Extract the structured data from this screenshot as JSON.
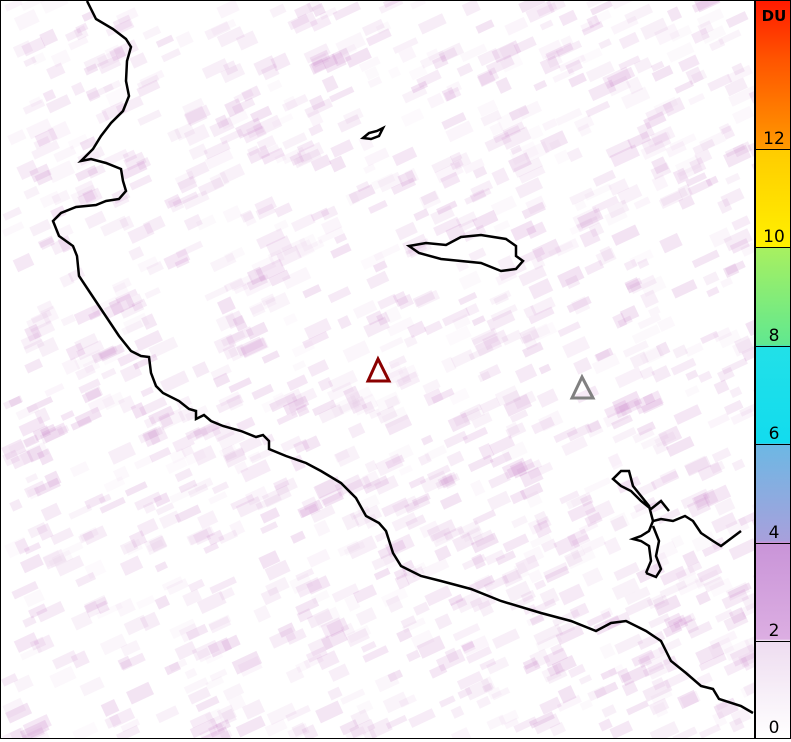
{
  "map": {
    "variable_unit": "DU",
    "markers": [
      {
        "name": "primary-volcano",
        "color": "#8b0000"
      },
      {
        "name": "secondary-volcano",
        "color": "#808080"
      }
    ],
    "background_color": "#ffffff",
    "noise_color": "#c880c8"
  },
  "colorbar": {
    "unit": "DU",
    "min": 0,
    "max": 15,
    "ticks": [
      "0",
      "2",
      "4",
      "6",
      "8",
      "10",
      "12"
    ]
  }
}
